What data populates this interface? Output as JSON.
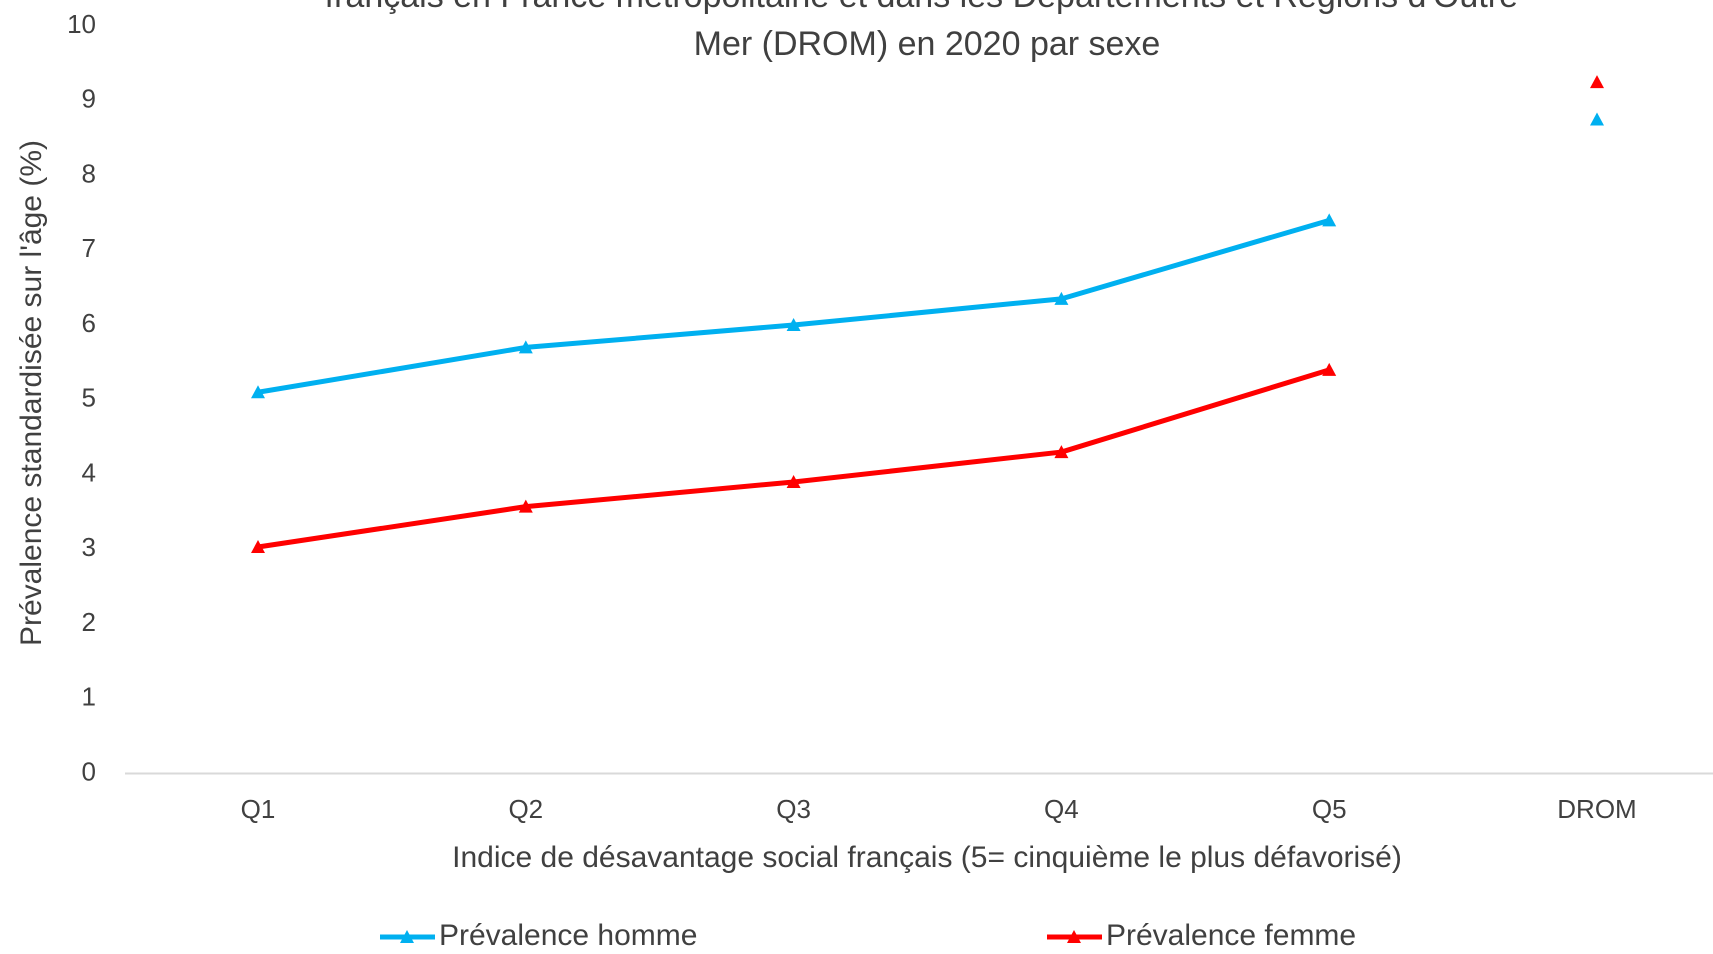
{
  "chart_data": {
    "type": "line",
    "title": [
      "français en France métropolitaine et dans les Départements et Régions d'Outre-",
      "Mer (DROM) en 2020 par sexe"
    ],
    "x_label": "Indice de désavantage social français (5= cinquième le plus défavorisé)",
    "y_label": "Prévalence standardisée sur l'âge (%)",
    "categories": [
      "Q1",
      "Q2",
      "Q3",
      "Q4",
      "Q5",
      "DROM"
    ],
    "series": [
      {
        "name": "Prévalence homme",
        "color": "#00b0f0",
        "values": [
          5.1,
          5.7,
          6.0,
          6.35,
          7.4,
          8.75
        ]
      },
      {
        "name": "Prévalence femme",
        "color": "#ff0000",
        "values": [
          3.03,
          3.57,
          3.9,
          4.3,
          5.4,
          9.25
        ]
      }
    ],
    "ylim": [
      0,
      10
    ],
    "yticks": [
      0,
      1,
      2,
      3,
      4,
      5,
      6,
      7,
      8,
      9,
      10
    ],
    "grid": false,
    "legend": "bottom"
  }
}
